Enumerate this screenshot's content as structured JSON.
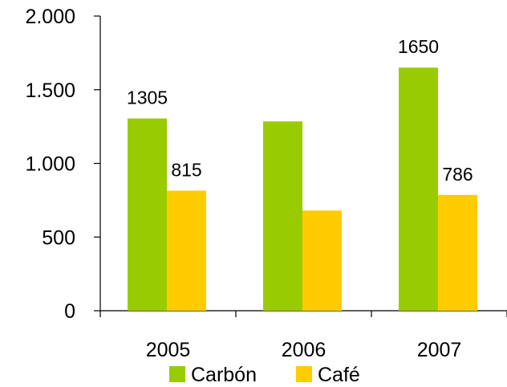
{
  "chart_data": {
    "type": "bar",
    "title": "",
    "xlabel": "",
    "ylabel": "",
    "categories": [
      "2005",
      "2006",
      "2007"
    ],
    "ylim": [
      0,
      2000
    ],
    "yticks": [
      0,
      500,
      1000,
      1500,
      2000
    ],
    "ytick_labels": [
      "0",
      "500",
      "1.000",
      "1.500",
      "2.000"
    ],
    "grid": false,
    "legend_position": "bottom",
    "series": [
      {
        "name": "Carbón",
        "color": "#99cc00",
        "values": [
          1305,
          1285,
          1650
        ],
        "labels": [
          "1305",
          "",
          "1650"
        ]
      },
      {
        "name": "Café",
        "color": "#ffcc00",
        "values": [
          815,
          680,
          786
        ],
        "labels": [
          "815",
          "",
          "786"
        ]
      }
    ]
  }
}
